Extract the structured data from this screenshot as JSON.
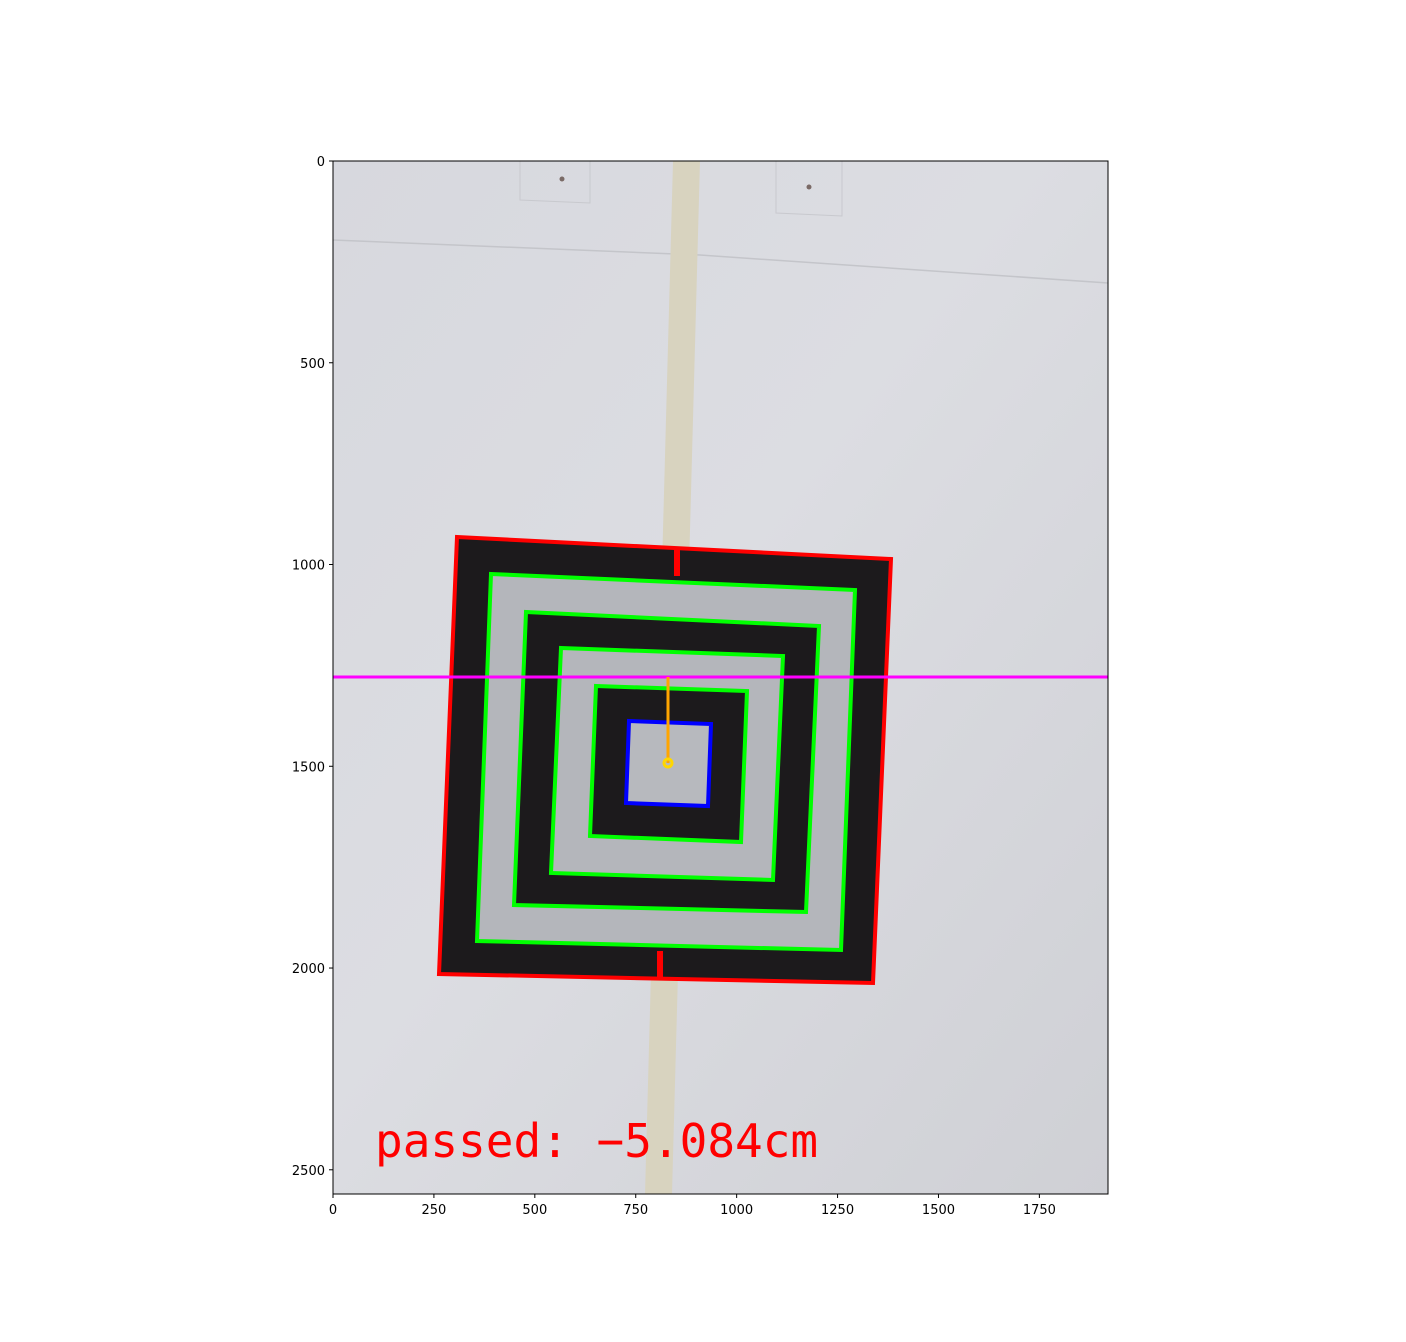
{
  "axes": {
    "x_ticks": [
      "0",
      "250",
      "500",
      "750",
      "1000",
      "1250",
      "1500",
      "1750"
    ],
    "y_ticks": [
      "0",
      "500",
      "1000",
      "1500",
      "2000",
      "2500"
    ],
    "xlim": [
      0,
      1920
    ],
    "ylim": [
      2560,
      0
    ]
  },
  "overlay": {
    "status_text": "passed: −5.084cm"
  },
  "colors": {
    "outer_contour": "#ff0000",
    "ring_contours": "#00ff00",
    "inner_contour": "#0000ff",
    "reference_line": "#ff00ff",
    "offset_line": "#ffa500",
    "center_point": "#ffff00",
    "status_text": "#ff0000"
  }
}
